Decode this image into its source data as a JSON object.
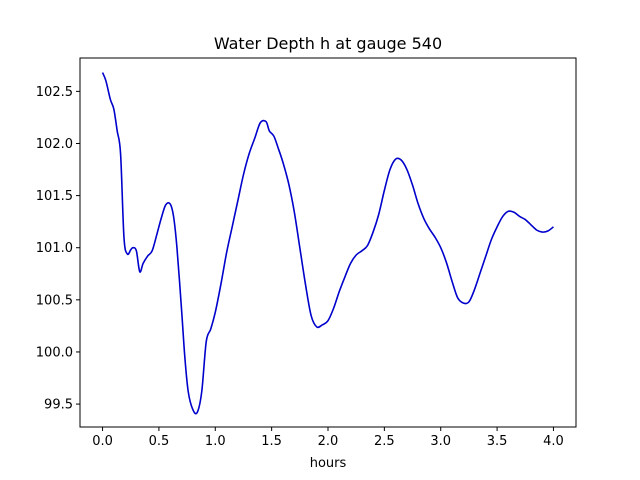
{
  "chart_data": {
    "type": "line",
    "title": "Water Depth h at gauge 540",
    "xlabel": "hours",
    "ylabel": "",
    "xlim": [
      -0.2,
      4.2
    ],
    "ylim": [
      99.28,
      102.82
    ],
    "xticks": [
      0.0,
      0.5,
      1.0,
      1.5,
      2.0,
      2.5,
      3.0,
      3.5,
      4.0
    ],
    "xtick_labels": [
      "0.0",
      "0.5",
      "1.0",
      "1.5",
      "2.0",
      "2.5",
      "3.0",
      "3.5",
      "4.0"
    ],
    "yticks": [
      99.5,
      100.0,
      100.5,
      101.0,
      101.5,
      102.0,
      102.5
    ],
    "ytick_labels": [
      "99.5",
      "100.0",
      "100.5",
      "101.0",
      "101.5",
      "102.0",
      "102.5"
    ],
    "grid": false,
    "series": [
      {
        "name": "",
        "color": "#0000cc",
        "x": [
          0.0,
          0.03,
          0.07,
          0.1,
          0.13,
          0.16,
          0.19,
          0.22,
          0.25,
          0.27,
          0.3,
          0.33,
          0.36,
          0.4,
          0.44,
          0.48,
          0.52,
          0.56,
          0.6,
          0.63,
          0.66,
          0.7,
          0.73,
          0.76,
          0.8,
          0.84,
          0.88,
          0.92,
          0.96,
          1.0,
          1.05,
          1.1,
          1.15,
          1.2,
          1.25,
          1.3,
          1.35,
          1.4,
          1.45,
          1.48,
          1.52,
          1.56,
          1.6,
          1.65,
          1.7,
          1.75,
          1.8,
          1.85,
          1.9,
          1.95,
          2.0,
          2.05,
          2.1,
          2.15,
          2.2,
          2.25,
          2.3,
          2.35,
          2.4,
          2.45,
          2.5,
          2.55,
          2.6,
          2.65,
          2.7,
          2.75,
          2.8,
          2.85,
          2.9,
          2.95,
          3.0,
          3.05,
          3.1,
          3.15,
          3.2,
          3.25,
          3.3,
          3.35,
          3.4,
          3.45,
          3.5,
          3.55,
          3.6,
          3.65,
          3.7,
          3.75,
          3.8,
          3.85,
          3.9,
          3.95,
          4.0
        ],
        "y": [
          102.68,
          102.6,
          102.42,
          102.33,
          102.12,
          101.9,
          101.1,
          100.94,
          100.98,
          101.0,
          100.97,
          100.77,
          100.85,
          100.92,
          100.97,
          101.12,
          101.28,
          101.41,
          101.42,
          101.3,
          101.0,
          100.42,
          99.95,
          99.62,
          99.45,
          99.42,
          99.62,
          100.1,
          100.22,
          100.38,
          100.65,
          100.95,
          101.2,
          101.45,
          101.7,
          101.9,
          102.05,
          102.2,
          102.21,
          102.12,
          102.07,
          101.95,
          101.82,
          101.62,
          101.35,
          101.0,
          100.65,
          100.35,
          100.24,
          100.26,
          100.3,
          100.42,
          100.58,
          100.72,
          100.85,
          100.93,
          100.97,
          101.02,
          101.15,
          101.32,
          101.55,
          101.75,
          101.85,
          101.84,
          101.75,
          101.6,
          101.42,
          101.28,
          101.18,
          101.1,
          101.0,
          100.86,
          100.68,
          100.52,
          100.47,
          100.48,
          100.6,
          100.76,
          100.92,
          101.08,
          101.2,
          101.3,
          101.35,
          101.34,
          101.3,
          101.27,
          101.22,
          101.17,
          101.15,
          101.16,
          101.2
        ]
      }
    ]
  }
}
